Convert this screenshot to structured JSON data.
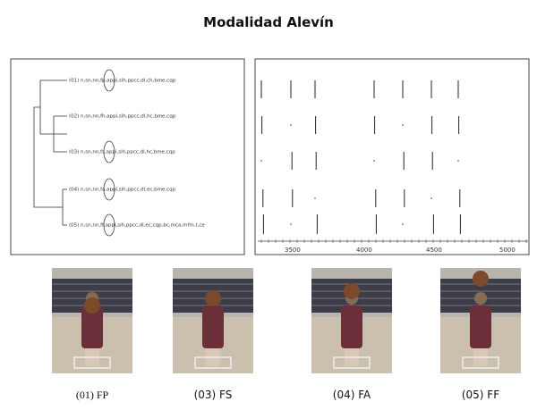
{
  "title": "Modalidad Alevín",
  "dendrogram": {
    "leaves": [
      "(01) n,sn,nn,fp,appi,sih,ppcc,dl,ch,bme,cqp",
      "(02) n,sn,nn,fh,appi,sih,ppcc,dl,hc,bme,cqp",
      "(03) n,sn,nn,fs,appi,sih,ppcc,dl,hc,bme,cqp",
      "(04) n,sn,nn,fa,appi,sih,ppcc,dl,ec,bme,cqp",
      "(05) n,sn,nn,ff,appi,sih,ppcc,dl,ec,cqp,bc,mca,mfm,t,ce"
    ]
  },
  "raster": {
    "axis_labels": [
      "3500",
      "4000",
      "4500",
      "5000"
    ]
  },
  "photos": {
    "captions": [
      "(01) FP",
      "(03) FS",
      "(04) FA",
      "(05) FF"
    ]
  }
}
